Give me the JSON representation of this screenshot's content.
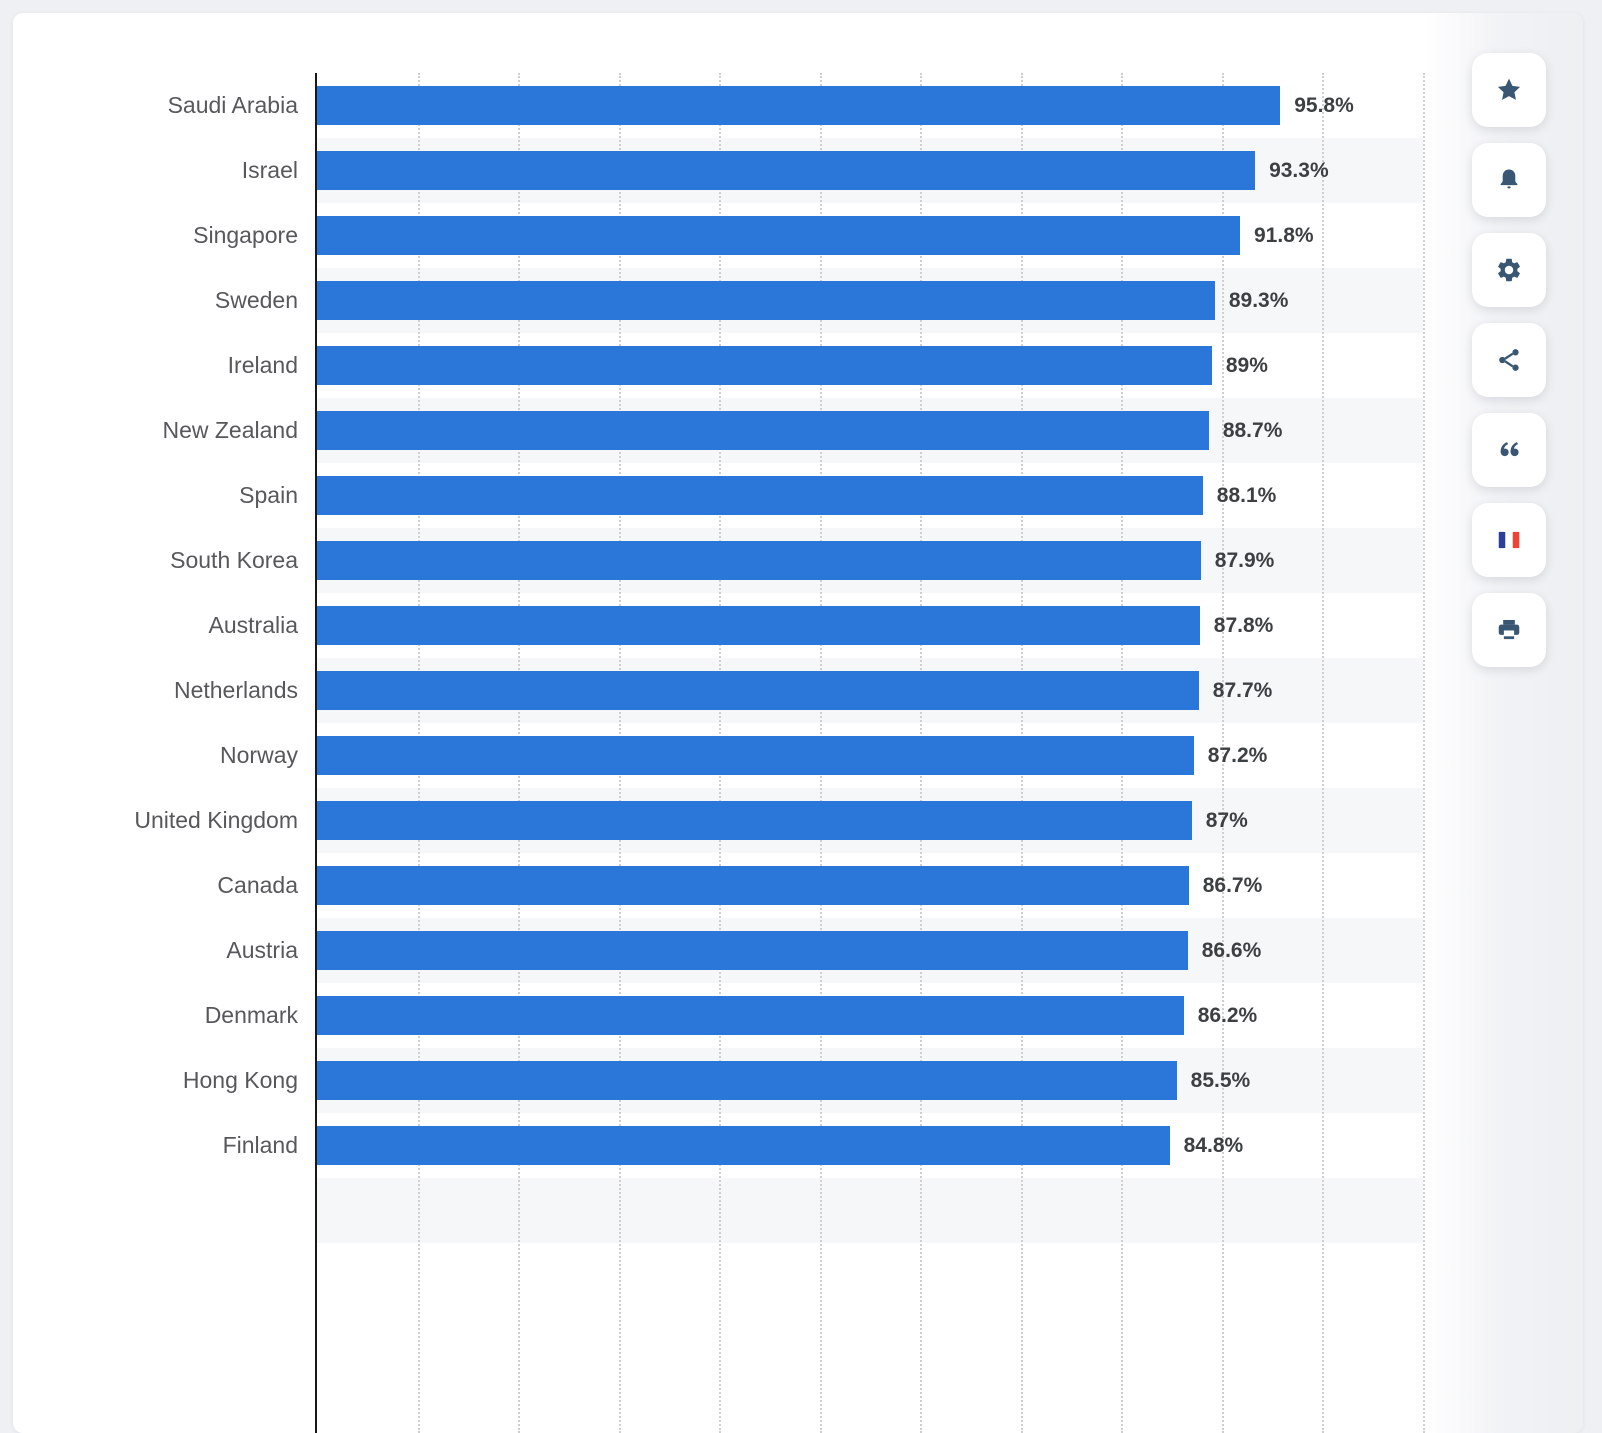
{
  "chart_data": {
    "type": "bar",
    "orientation": "horizontal",
    "title": "",
    "categories": [
      "Saudi Arabia",
      "Israel",
      "Singapore",
      "Sweden",
      "Ireland",
      "New Zealand",
      "Spain",
      "South Korea",
      "Australia",
      "Netherlands",
      "Norway",
      "United Kingdom",
      "Canada",
      "Austria",
      "Denmark",
      "Hong Kong",
      "Finland"
    ],
    "values": [
      95.8,
      93.3,
      91.8,
      89.3,
      89,
      88.7,
      88.1,
      87.9,
      87.8,
      87.7,
      87.2,
      87,
      86.7,
      86.6,
      86.2,
      85.5,
      84.8
    ],
    "value_labels": [
      "95.8%",
      "93.3%",
      "91.8%",
      "89.3%",
      "89%",
      "88.7%",
      "88.1%",
      "87.9%",
      "87.8%",
      "87.7%",
      "87.2%",
      "87%",
      "86.7%",
      "86.6%",
      "86.2%",
      "85.5%",
      "84.8%"
    ],
    "unit": "%",
    "xlim": [
      0,
      110
    ],
    "gridline_interval": 10,
    "gridline_count": 11,
    "grid": true,
    "legend": "none",
    "bar_color": "#2b76d9",
    "stripe_color": "#f6f7f8",
    "axis_color": "#17181a",
    "gridline_color": "#cfcfcf",
    "category_label_color": "#56585c",
    "value_label_color": "#3d4043"
  },
  "rail": {
    "buttons": [
      {
        "id": "favorite",
        "icon": "star",
        "label": "Favorite"
      },
      {
        "id": "alerts",
        "icon": "bell",
        "label": "Alerts"
      },
      {
        "id": "settings",
        "icon": "gear",
        "label": "Settings"
      },
      {
        "id": "share",
        "icon": "share",
        "label": "Share"
      },
      {
        "id": "cite",
        "icon": "quote",
        "label": "Cite"
      },
      {
        "id": "language-french",
        "icon": "french-flag",
        "label": "French version"
      },
      {
        "id": "print",
        "icon": "printer",
        "label": "Print"
      }
    ],
    "icon_color": "#395673",
    "flag_blue": "#2b3f9a",
    "flag_red": "#ef4236"
  },
  "page": {
    "background_color": "#eff0f3",
    "card_color": "#ffffff"
  }
}
